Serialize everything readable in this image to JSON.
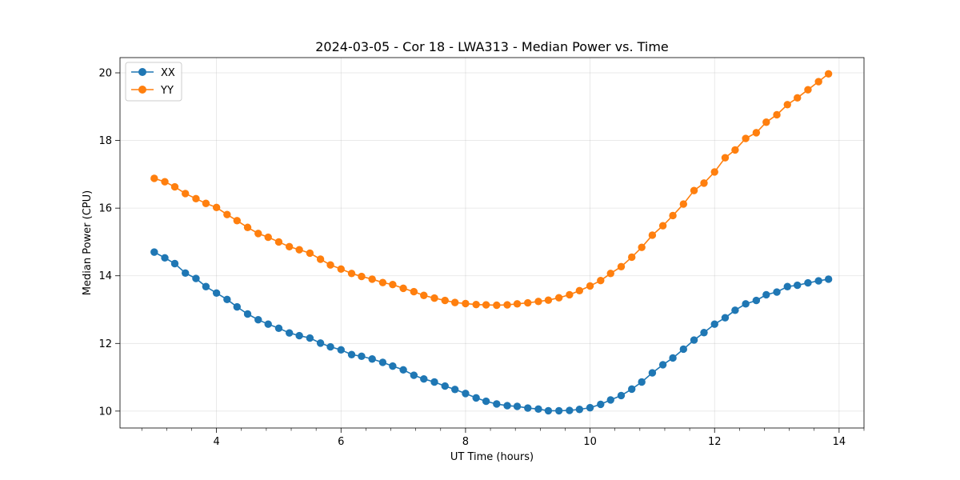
{
  "chart_data": {
    "type": "line",
    "title": "2024-03-05 - Cor 18 - LWA313 - Median Power vs. Time",
    "xlabel": "UT Time (hours)",
    "ylabel": "Median Power (CPU)",
    "xlim": [
      2.45,
      14.4
    ],
    "ylim": [
      9.5,
      20.45
    ],
    "grid": true,
    "legend": "top-left",
    "x_ticks": [
      4,
      6,
      8,
      10,
      12,
      14
    ],
    "y_ticks": [
      10,
      12,
      14,
      16,
      18,
      20
    ],
    "x": [
      3.0,
      3.17,
      3.33,
      3.5,
      3.67,
      3.83,
      4.0,
      4.17,
      4.33,
      4.5,
      4.67,
      4.83,
      5.0,
      5.17,
      5.33,
      5.5,
      5.67,
      5.83,
      6.0,
      6.17,
      6.33,
      6.5,
      6.67,
      6.83,
      7.0,
      7.17,
      7.33,
      7.5,
      7.67,
      7.83,
      8.0,
      8.17,
      8.33,
      8.5,
      8.67,
      8.83,
      9.0,
      9.17,
      9.33,
      9.5,
      9.67,
      9.83,
      10.0,
      10.17,
      10.33,
      10.5,
      10.67,
      10.83,
      11.0,
      11.17,
      11.33,
      11.5,
      11.67,
      11.83,
      12.0,
      12.17,
      12.33,
      12.5,
      12.67,
      12.83,
      13.0,
      13.17,
      13.33,
      13.5,
      13.67,
      13.83
    ],
    "series": [
      {
        "name": "XX",
        "color": "#1f77b4",
        "values": [
          14.7,
          14.53,
          14.36,
          14.08,
          13.92,
          13.68,
          13.49,
          13.3,
          13.08,
          12.87,
          12.7,
          12.57,
          12.45,
          12.31,
          12.23,
          12.16,
          12.01,
          11.9,
          11.81,
          11.67,
          11.62,
          11.54,
          11.44,
          11.33,
          11.22,
          11.06,
          10.95,
          10.86,
          10.74,
          10.64,
          10.52,
          10.39,
          10.29,
          10.21,
          10.16,
          10.14,
          10.09,
          10.06,
          10.01,
          10.01,
          10.02,
          10.05,
          10.1,
          10.2,
          10.33,
          10.46,
          10.65,
          10.86,
          11.13,
          11.37,
          11.57,
          11.83,
          12.1,
          12.32,
          12.57,
          12.76,
          12.98,
          13.17,
          13.27,
          13.44,
          13.52,
          13.68,
          13.72,
          13.79,
          13.85,
          13.9
        ]
      },
      {
        "name": "YY",
        "color": "#ff7f0e",
        "values": [
          16.88,
          16.78,
          16.63,
          16.43,
          16.28,
          16.14,
          16.02,
          15.81,
          15.63,
          15.43,
          15.25,
          15.14,
          15.0,
          14.86,
          14.77,
          14.67,
          14.49,
          14.32,
          14.2,
          14.07,
          13.98,
          13.9,
          13.8,
          13.74,
          13.63,
          13.53,
          13.42,
          13.34,
          13.27,
          13.21,
          13.18,
          13.15,
          13.14,
          13.13,
          13.14,
          13.17,
          13.2,
          13.24,
          13.28,
          13.35,
          13.44,
          13.56,
          13.7,
          13.86,
          14.07,
          14.27,
          14.55,
          14.84,
          15.2,
          15.48,
          15.78,
          16.12,
          16.52,
          16.74,
          17.07,
          17.49,
          17.72,
          18.06,
          18.23,
          18.54,
          18.76,
          19.06,
          19.26,
          19.5,
          19.74,
          19.97
        ]
      }
    ]
  }
}
